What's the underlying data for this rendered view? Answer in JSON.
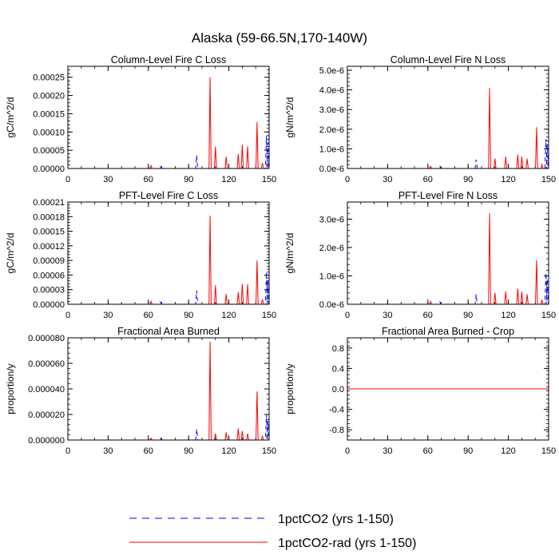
{
  "figure_title": "Alaska (59-66.5N,170-140W)",
  "legend": [
    {
      "label": "1pctCO2 (yrs 1-150)",
      "color": "#0000ff",
      "dash": "dashed"
    },
    {
      "label": "1pctCO2-rad (yrs 1-150)",
      "color": "#ff0000",
      "dash": "solid"
    }
  ],
  "chart_data": [
    {
      "type": "line",
      "title": "Column-Level Fire C Loss",
      "ylabel": "gC/m^2/d",
      "xlim": [
        0,
        150
      ],
      "ylim": [
        0,
        0.00028
      ],
      "xticks": [
        0,
        30,
        60,
        90,
        120,
        150
      ],
      "yticks": [
        0,
        5e-05,
        0.0001,
        0.00015,
        0.0002,
        0.00025
      ],
      "ytick_labels": [
        "0.00000",
        "0.00005",
        "0.00010",
        "0.00015",
        "0.00020",
        "0.00025"
      ],
      "series": [
        {
          "name": "1pctCO2 (yrs 1-150)",
          "color": "#0000ff",
          "dash": "dashed",
          "spikes": [
            [
              69,
              6e-06
            ],
            [
              96,
              3.6e-05
            ],
            [
              147,
              1e-06
            ],
            [
              148,
              9e-05
            ],
            [
              149,
              7e-05
            ]
          ]
        },
        {
          "name": "1pctCO2-rad (yrs 1-150)",
          "color": "#ff0000",
          "dash": "solid",
          "spikes": [
            [
              62,
              8e-06
            ],
            [
              106,
              0.00025
            ],
            [
              110,
              6e-05
            ],
            [
              118,
              3.2e-05
            ],
            [
              127,
              4e-05
            ],
            [
              130,
              6.5e-05
            ],
            [
              134,
              6e-05
            ],
            [
              141,
              0.000127
            ],
            [
              145,
              1.5e-05
            ]
          ]
        }
      ]
    },
    {
      "type": "line",
      "title": "Column-Level Fire N Loss",
      "ylabel": "gN/m^2/d",
      "xlim": [
        0,
        150
      ],
      "ylim": [
        0,
        5.2e-06
      ],
      "xticks": [
        0,
        30,
        60,
        90,
        120,
        150
      ],
      "yticks": [
        0,
        1e-06,
        2e-06,
        3e-06,
        4e-06,
        5e-06
      ],
      "ytick_labels": [
        "0.0e-6",
        "1.0e-6",
        "2.0e-6",
        "3.0e-6",
        "4.0e-6",
        "5.0e-6"
      ],
      "series": [
        {
          "name": "1pctCO2 (yrs 1-150)",
          "color": "#0000ff",
          "dash": "dashed",
          "spikes": [
            [
              69,
              1e-07
            ],
            [
              96,
              4.5e-07
            ],
            [
              148,
              1.5e-06
            ],
            [
              149,
              1.2e-06
            ]
          ]
        },
        {
          "name": "1pctCO2-rad (yrs 1-150)",
          "color": "#ff0000",
          "dash": "solid",
          "spikes": [
            [
              62,
              1.2e-07
            ],
            [
              106,
              4.1e-06
            ],
            [
              110,
              5e-07
            ],
            [
              118,
              6e-07
            ],
            [
              127,
              7e-07
            ],
            [
              130,
              6e-07
            ],
            [
              134,
              5e-07
            ],
            [
              141,
              2.1e-06
            ],
            [
              145,
              2e-07
            ]
          ]
        }
      ]
    },
    {
      "type": "line",
      "title": "PFT-Level Fire C Loss",
      "ylabel": "gC/m^2/d",
      "xlim": [
        0,
        150
      ],
      "ylim": [
        0,
        0.00021
      ],
      "xticks": [
        0,
        30,
        60,
        90,
        120,
        150
      ],
      "yticks": [
        0,
        3e-05,
        6e-05,
        9e-05,
        0.00012,
        0.00015,
        0.00018,
        0.00021
      ],
      "ytick_labels": [
        "0.00000",
        "0.00003",
        "0.00006",
        "0.00009",
        "0.00012",
        "0.00015",
        "0.00018",
        "0.00021"
      ],
      "series": [
        {
          "name": "1pctCO2 (yrs 1-150)",
          "color": "#0000ff",
          "dash": "dashed",
          "spikes": [
            [
              69,
              5e-06
            ],
            [
              96,
              2.8e-05
            ],
            [
              148,
              6.6e-05
            ],
            [
              149,
              5e-05
            ]
          ]
        },
        {
          "name": "1pctCO2-rad (yrs 1-150)",
          "color": "#ff0000",
          "dash": "solid",
          "spikes": [
            [
              62,
              6e-06
            ],
            [
              106,
              0.000182
            ],
            [
              110,
              3.9e-05
            ],
            [
              118,
              2.1e-05
            ],
            [
              127,
              2.5e-05
            ],
            [
              130,
              4.2e-05
            ],
            [
              134,
              4.1e-05
            ],
            [
              141,
              9e-05
            ],
            [
              145,
              1e-05
            ]
          ]
        }
      ]
    },
    {
      "type": "line",
      "title": "PFT-Level Fire N Loss",
      "ylabel": "gN/m^2/d",
      "xlim": [
        0,
        150
      ],
      "ylim": [
        0,
        3.6e-06
      ],
      "xticks": [
        0,
        30,
        60,
        90,
        120,
        150
      ],
      "yticks": [
        0,
        1e-06,
        2e-06,
        3e-06
      ],
      "ytick_labels": [
        "0.0e-6",
        "1.0e-6",
        "2.0e-6",
        "3.0e-6"
      ],
      "series": [
        {
          "name": "1pctCO2 (yrs 1-150)",
          "color": "#0000ff",
          "dash": "dashed",
          "spikes": [
            [
              69,
              8e-08
            ],
            [
              96,
              3.5e-07
            ],
            [
              148,
              1.1e-06
            ],
            [
              149,
              9e-07
            ]
          ]
        },
        {
          "name": "1pctCO2-rad (yrs 1-150)",
          "color": "#ff0000",
          "dash": "solid",
          "spikes": [
            [
              62,
              1e-07
            ],
            [
              106,
              3.2e-06
            ],
            [
              110,
              4e-07
            ],
            [
              118,
              4.5e-07
            ],
            [
              127,
              5.5e-07
            ],
            [
              130,
              4.5e-07
            ],
            [
              134,
              3.5e-07
            ],
            [
              141,
              1.55e-06
            ],
            [
              145,
              1.5e-07
            ]
          ]
        }
      ]
    },
    {
      "type": "line",
      "title": "Fractional Area Burned",
      "ylabel": "proportion/y",
      "xlim": [
        0,
        150
      ],
      "ylim": [
        0,
        8e-05
      ],
      "xticks": [
        0,
        30,
        60,
        90,
        120,
        150
      ],
      "yticks": [
        0,
        2e-05,
        4e-05,
        6e-05,
        8e-05
      ],
      "ytick_labels": [
        "0.000000",
        "0.000020",
        "0.000040",
        "0.000060",
        "0.000080"
      ],
      "series": [
        {
          "name": "1pctCO2 (yrs 1-150)",
          "color": "#0000ff",
          "dash": "dashed",
          "spikes": [
            [
              69,
              1.5e-06
            ],
            [
              96,
              8.5e-06
            ],
            [
              148,
              2e-05
            ],
            [
              149,
              1.5e-05
            ]
          ]
        },
        {
          "name": "1pctCO2-rad (yrs 1-150)",
          "color": "#ff0000",
          "dash": "solid",
          "spikes": [
            [
              62,
              1.5e-06
            ],
            [
              106,
              7.7e-05
            ],
            [
              110,
              5e-06
            ],
            [
              118,
              6e-06
            ],
            [
              127,
              9e-06
            ],
            [
              130,
              7e-06
            ],
            [
              134,
              5e-06
            ],
            [
              141,
              3.8e-05
            ],
            [
              145,
              3e-06
            ]
          ]
        }
      ]
    },
    {
      "type": "line",
      "title": "Fractional Area Burned - Crop",
      "ylabel": "proportion/y",
      "xlim": [
        0,
        150
      ],
      "ylim": [
        -1,
        1
      ],
      "xticks": [
        0,
        30,
        60,
        90,
        120,
        150
      ],
      "yticks": [
        -0.8,
        -0.4,
        0,
        0.4,
        0.8
      ],
      "ytick_labels": [
        "-0.8",
        "-0.4",
        "0.0",
        "0.4",
        "0.8"
      ],
      "series": [
        {
          "name": "1pctCO2 (yrs 1-150)",
          "color": "#0000ff",
          "dash": "dashed",
          "spikes": []
        },
        {
          "name": "1pctCO2-rad (yrs 1-150)",
          "color": "#ff0000",
          "dash": "solid",
          "spikes": []
        }
      ]
    }
  ]
}
